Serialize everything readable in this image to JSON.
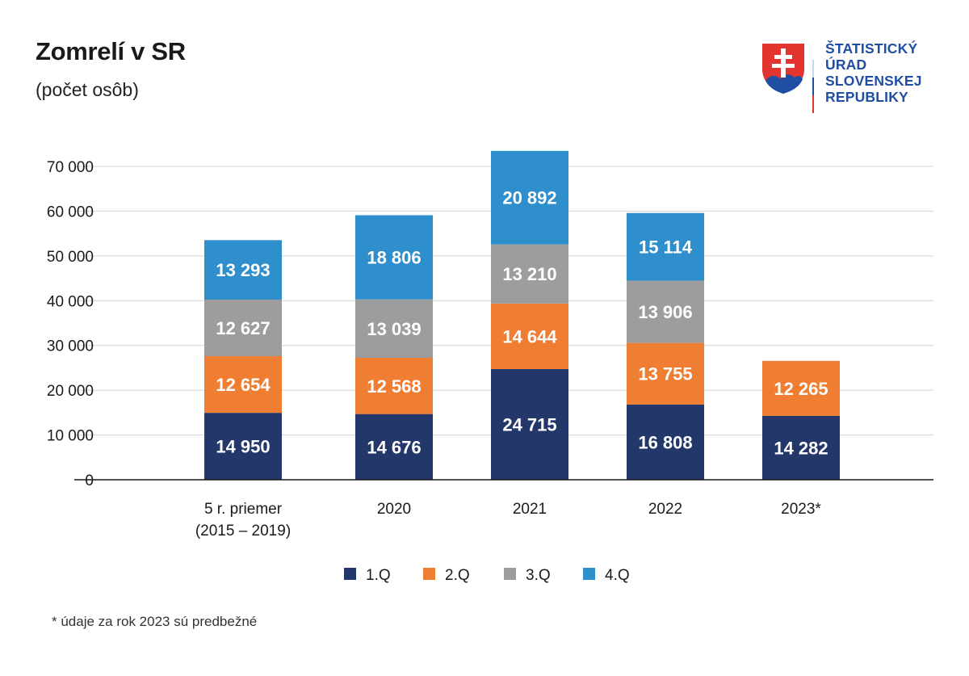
{
  "header": {
    "title": "Zomrelí v SR",
    "subtitle": "(počet osôb)"
  },
  "logo": {
    "lines": [
      "ŠTATISTICKÝ",
      "ÚRAD",
      "SLOVENSKEJ",
      "REPUBLIKY"
    ],
    "icon": "slovak-coat-of-arms-icon",
    "colors": {
      "text": "#1f4ea3",
      "red": "#e3342f",
      "blue": "#1f4ea3",
      "white": "#ffffff"
    }
  },
  "chart_data": {
    "type": "bar",
    "stacked": true,
    "title": "Zomrelí v SR",
    "subtitle": "(počet osôb)",
    "categories": [
      [
        "5 r. priemer",
        "(2015 – 2019)"
      ],
      [
        "2020"
      ],
      [
        "2021"
      ],
      [
        "2022"
      ],
      [
        "2023*"
      ]
    ],
    "series": [
      {
        "name": "1.Q",
        "color": "#23376b",
        "values": [
          14950,
          14676,
          24715,
          16808,
          14282
        ],
        "labels": [
          "14 950",
          "14 676",
          "24 715",
          "16 808",
          "14 282"
        ]
      },
      {
        "name": "2.Q",
        "color": "#ef7d32",
        "values": [
          12654,
          12568,
          14644,
          13755,
          12265
        ],
        "labels": [
          "12 654",
          "12 568",
          "14 644",
          "13 755",
          "12 265"
        ]
      },
      {
        "name": "3.Q",
        "color": "#9d9d9d",
        "values": [
          12627,
          13039,
          13210,
          13906,
          null
        ],
        "labels": [
          "12 627",
          "13 039",
          "13 210",
          "13 906",
          null
        ]
      },
      {
        "name": "4.Q",
        "color": "#2f8fcc",
        "values": [
          13293,
          18806,
          20892,
          15114,
          null
        ],
        "labels": [
          "13 293",
          "18 806",
          "20 892",
          "15 114",
          null
        ]
      }
    ],
    "ylim": [
      0,
      70000
    ],
    "yticks": [
      0,
      10000,
      20000,
      30000,
      40000,
      50000,
      60000,
      70000
    ],
    "ytick_labels": [
      "0",
      "10 000",
      "20 000",
      "30 000",
      "40 000",
      "50 000",
      "60 000",
      "70 000"
    ],
    "grid": true,
    "legend": "bottom-center",
    "xlabel": "",
    "ylabel": ""
  },
  "footnote": "* údaje za rok 2023 sú predbežné"
}
